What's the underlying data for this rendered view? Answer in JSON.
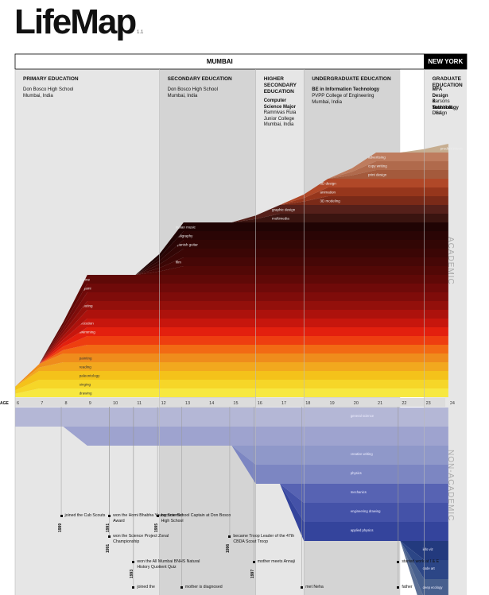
{
  "title": "LifeMap",
  "version": "1.1",
  "locations": [
    {
      "label": "MUMBAI",
      "ages": [
        6,
        23
      ]
    },
    {
      "label": "NEW YORK",
      "ages": [
        23,
        24
      ]
    }
  ],
  "phases": [
    {
      "heading": "PRIMARY EDUCATION",
      "lines": [
        "Don Bosco High School",
        "Mumbai, India"
      ],
      "ages": [
        6,
        12
      ]
    },
    {
      "heading": "SECONDARY EDUCATION",
      "lines": [
        "Don Bosco High School",
        "Mumbai, India"
      ],
      "ages": [
        12,
        16
      ]
    },
    {
      "heading": "HIGHER SECONDARY EDUCATION",
      "major": "Computer Science Major",
      "lines": [
        "Ramnivas Ruia",
        "Junior College",
        "Mumbai, India"
      ],
      "ages": [
        16,
        18
      ]
    },
    {
      "heading": "UNDERGRADUATE EDUCATION",
      "major": "BE in Information Technology",
      "lines": [
        "PVPP College of Engineering",
        "Mumbai, India"
      ],
      "ages": [
        18,
        22
      ]
    },
    {
      "heading": "GRADUATE EDUCATION",
      "major": "MFA Design & Technology",
      "lines": [
        "Parsons School of Design",
        "New York, USA"
      ],
      "ages": [
        23,
        24
      ]
    }
  ],
  "side_labels": {
    "academic": "ACADEMIC",
    "non_academic": "NON-ACADEMIC"
  },
  "axis": {
    "label": "AGE",
    "ticks": [
      6,
      7,
      8,
      9,
      10,
      11,
      12,
      13,
      14,
      15,
      16,
      17,
      18,
      19,
      20,
      21,
      22,
      23,
      24
    ]
  },
  "chart_data": {
    "type": "area",
    "x": [
      6,
      7,
      8,
      9,
      10,
      11,
      12,
      13,
      14,
      15,
      16,
      17,
      18,
      19,
      20,
      21,
      22,
      23,
      24
    ],
    "academic_layers": [
      {
        "name": "drawing",
        "start": 6,
        "color": "#f7e840"
      },
      {
        "name": "singing",
        "start": 6,
        "color": "#f6d628"
      },
      {
        "name": "paleontology",
        "start": 6,
        "color": "#f4c21a"
      },
      {
        "name": "reading",
        "start": 7,
        "color": "#f2a81e"
      },
      {
        "name": "painting",
        "start": 7,
        "color": "#ef8c1c"
      },
      {
        "name": "",
        "start": 8,
        "color": "#f26a14"
      },
      {
        "name": "",
        "start": 8,
        "color": "#ee3e10"
      },
      {
        "name": "swimming",
        "start": 8,
        "color": "#e3200e"
      },
      {
        "name": "elocution",
        "start": 8,
        "color": "#c7160d"
      },
      {
        "name": "",
        "start": 8,
        "color": "#ad120c"
      },
      {
        "name": "scouting",
        "start": 8,
        "color": "#93100b"
      },
      {
        "name": "",
        "start": 8,
        "color": "#7f0c0a"
      },
      {
        "name": "origami",
        "start": 8,
        "color": "#6f0a09"
      },
      {
        "name": "devine",
        "start": 8,
        "color": "#5f0907"
      },
      {
        "name": "",
        "start": 12,
        "color": "#520806"
      },
      {
        "name": "film",
        "start": 12,
        "color": "#460706"
      },
      {
        "name": "",
        "start": 12,
        "color": "#3b0605"
      },
      {
        "name": "spanish guitar",
        "start": 12,
        "color": "#320605"
      },
      {
        "name": "calligraphy",
        "start": 12,
        "color": "#2a0505"
      },
      {
        "name": "indian music",
        "start": 12,
        "color": "#200404"
      },
      {
        "name": "multimedia",
        "start": 16,
        "color": "#3a1410"
      },
      {
        "name": "graphic design",
        "start": 16,
        "color": "#55201a"
      },
      {
        "name": "3D modeling",
        "start": 18,
        "color": "#7a2a18"
      },
      {
        "name": "animation",
        "start": 18,
        "color": "#96361c"
      },
      {
        "name": "3D design",
        "start": 18,
        "color": "#b04828"
      },
      {
        "name": "print design",
        "start": 20,
        "color": "#a45a3c"
      },
      {
        "name": "copy writing",
        "start": 20,
        "color": "#b06a4c"
      },
      {
        "name": "advertising",
        "start": 20,
        "color": "#be7c5e"
      },
      {
        "name": "product music",
        "start": 23,
        "color": "#c6ad90"
      }
    ],
    "non_academic_layers": [
      {
        "name": "general science",
        "start": 6,
        "color": "#b4b7d6"
      },
      {
        "name": "",
        "start": 9,
        "color": "#9ea3cf"
      },
      {
        "name": "creative writing",
        "start": 16,
        "color": "#8f98c9"
      },
      {
        "name": "physics",
        "start": 16,
        "color": "#7c86c2"
      },
      {
        "name": "mechanics",
        "start": 18,
        "color": "#5763b3"
      },
      {
        "name": "engineering drawing",
        "start": 18,
        "color": "#4452a8"
      },
      {
        "name": "applied physics",
        "start": 18,
        "color": "#34449c"
      },
      {
        "name": "info viz",
        "start": 23,
        "color": "#233a7e"
      },
      {
        "name": "code art",
        "start": 23,
        "color": "#2c4686"
      },
      {
        "name": "deep ecology",
        "start": 23,
        "color": "#48608e"
      },
      {
        "name": "gaia theory",
        "start": 23,
        "color": "#5d7196"
      }
    ]
  },
  "events": [
    {
      "year": "1989",
      "text": "joined the Cub Scouts",
      "age": 8,
      "row": 0
    },
    {
      "year": "1991",
      "text": "won the Homi Bhabha Young Scientist Award",
      "age": 10,
      "row": 0
    },
    {
      "year": "1991",
      "text": "won the Science Project Zonal Championship",
      "age": 10,
      "row": 1
    },
    {
      "year": "1993",
      "text": "won the All Mumbai BNHS Natural History Quotient Quiz",
      "age": 11,
      "row": 2
    },
    {
      "year": "",
      "text": "joined the",
      "age": 11,
      "row": 3
    },
    {
      "year": "1995",
      "text": "became School Captain at Don Bosco High School",
      "age": 12,
      "row": 0
    },
    {
      "year": "1996",
      "text": "became Troop Leader of the 47th CBDA Scout Troop",
      "age": 15,
      "row": 1
    },
    {
      "year": "",
      "text": "mother is diagnosed",
      "age": 13,
      "row": 3
    },
    {
      "year": "1997",
      "text": "mother meets Annaji",
      "age": 16,
      "row": 2
    },
    {
      "year": "1999",
      "text": "met Neha",
      "age": 18,
      "row": 3
    },
    {
      "year": "",
      "text": "started work at I & E",
      "age": 22,
      "row": 2
    },
    {
      "year": "",
      "text": "father",
      "age": 22,
      "row": 3
    }
  ]
}
